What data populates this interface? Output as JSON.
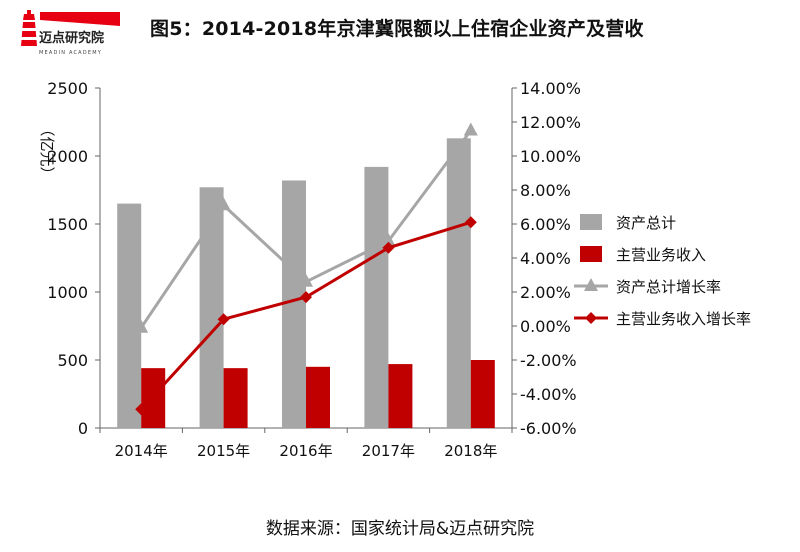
{
  "brand": {
    "name": "迈点研究院",
    "subtitle": "MEADIN ACADEMY",
    "colors": {
      "red": "#e60012"
    }
  },
  "title": "图5：2014-2018年京津冀限额以上住宿企业资产及营收",
  "source": "数据来源：国家统计局&迈点研究院",
  "chart_data": {
    "type": "bar",
    "title": "图5：2014-2018年京津冀限额以上住宿企业资产及营收",
    "categories": [
      "2014年",
      "2015年",
      "2016年",
      "2017年",
      "2018年"
    ],
    "ylabel": "（亿元）",
    "ylim": [
      0,
      2500
    ],
    "y_ticks": [
      "0",
      "500",
      "1000",
      "1500",
      "2000",
      "2500"
    ],
    "y2lim": [
      -0.06,
      0.14
    ],
    "y2_ticks": [
      "-6.00%",
      "-4.00%",
      "-2.00%",
      "0.00%",
      "2.00%",
      "4.00%",
      "6.00%",
      "8.00%",
      "10.00%",
      "12.00%",
      "14.00%"
    ],
    "series": [
      {
        "name": "资产总计",
        "kind": "bar",
        "axis": "left",
        "color": "#a6a6a6",
        "values": [
          1650,
          1770,
          1820,
          1920,
          2130
        ]
      },
      {
        "name": "主营业务收入",
        "kind": "bar",
        "axis": "left",
        "color": "#c00000",
        "values": [
          440,
          440,
          450,
          470,
          500
        ]
      },
      {
        "name": "资产总计增长率",
        "kind": "line",
        "axis": "right",
        "marker": "triangle",
        "color": "#a6a6a6",
        "values": [
          -0.001,
          0.071,
          0.026,
          0.05,
          0.115
        ]
      },
      {
        "name": "主营业务收入增长率",
        "kind": "line",
        "axis": "right",
        "marker": "diamond",
        "color": "#c00000",
        "values": [
          -0.049,
          0.004,
          0.017,
          0.046,
          0.061
        ]
      }
    ],
    "grid": false,
    "legend": "right"
  }
}
